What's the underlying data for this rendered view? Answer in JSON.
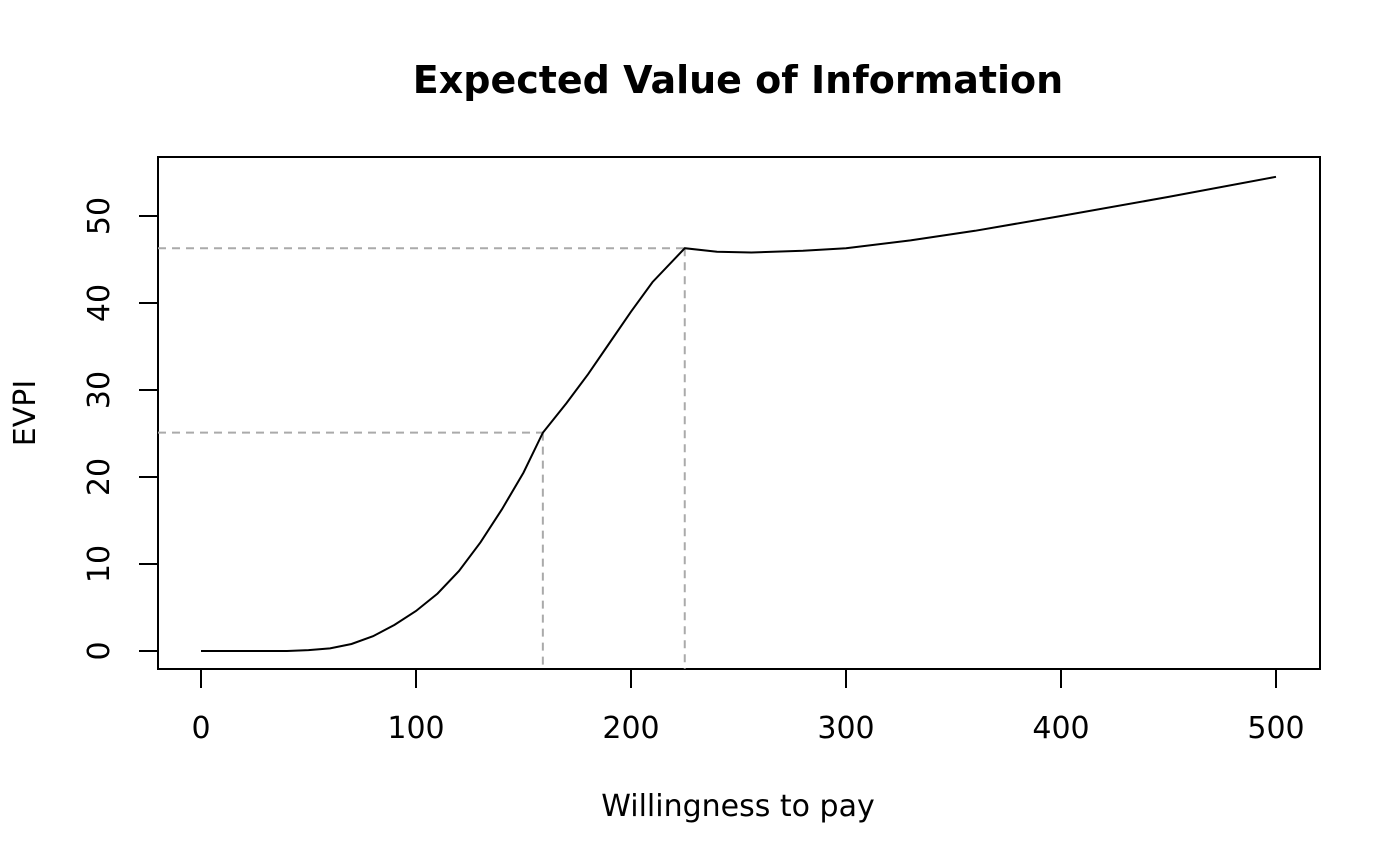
{
  "chart_data": {
    "type": "line",
    "title": "Expected Value of Information",
    "xlabel": "Willingness to pay",
    "ylabel": "EVPI",
    "xlim": [
      0,
      500
    ],
    "ylim": [
      0,
      55
    ],
    "xticks": [
      0,
      100,
      200,
      300,
      400,
      500
    ],
    "yticks": [
      0,
      10,
      20,
      30,
      40,
      50
    ],
    "xtick_labels": [
      "0",
      "100",
      "200",
      "300",
      "400",
      "500"
    ],
    "ytick_labels": [
      "0",
      "10",
      "20",
      "30",
      "40",
      "50"
    ],
    "grid": false,
    "series": [
      {
        "color": "#000000",
        "x": [
          0,
          20,
          40,
          50,
          60,
          70,
          80,
          90,
          100,
          110,
          120,
          130,
          140,
          150,
          159,
          170,
          180,
          190,
          200,
          210,
          225,
          240,
          256,
          280,
          300,
          330,
          360,
          400,
          450,
          500
        ],
        "y": [
          0,
          0,
          0,
          0.1,
          0.3,
          0.8,
          1.7,
          3.0,
          4.6,
          6.6,
          9.2,
          12.5,
          16.3,
          20.5,
          25.1,
          28.5,
          31.8,
          35.4,
          39.0,
          42.4,
          46.3,
          45.9,
          45.8,
          46.0,
          46.3,
          47.2,
          48.3,
          50.0,
          52.2,
          54.5
        ]
      }
    ],
    "reference_lines": [
      {
        "x": 159,
        "y": 25.1,
        "color": "#aaaaaa",
        "style": "dashed"
      },
      {
        "x": 225,
        "y": 46.3,
        "color": "#aaaaaa",
        "style": "dashed"
      }
    ]
  }
}
